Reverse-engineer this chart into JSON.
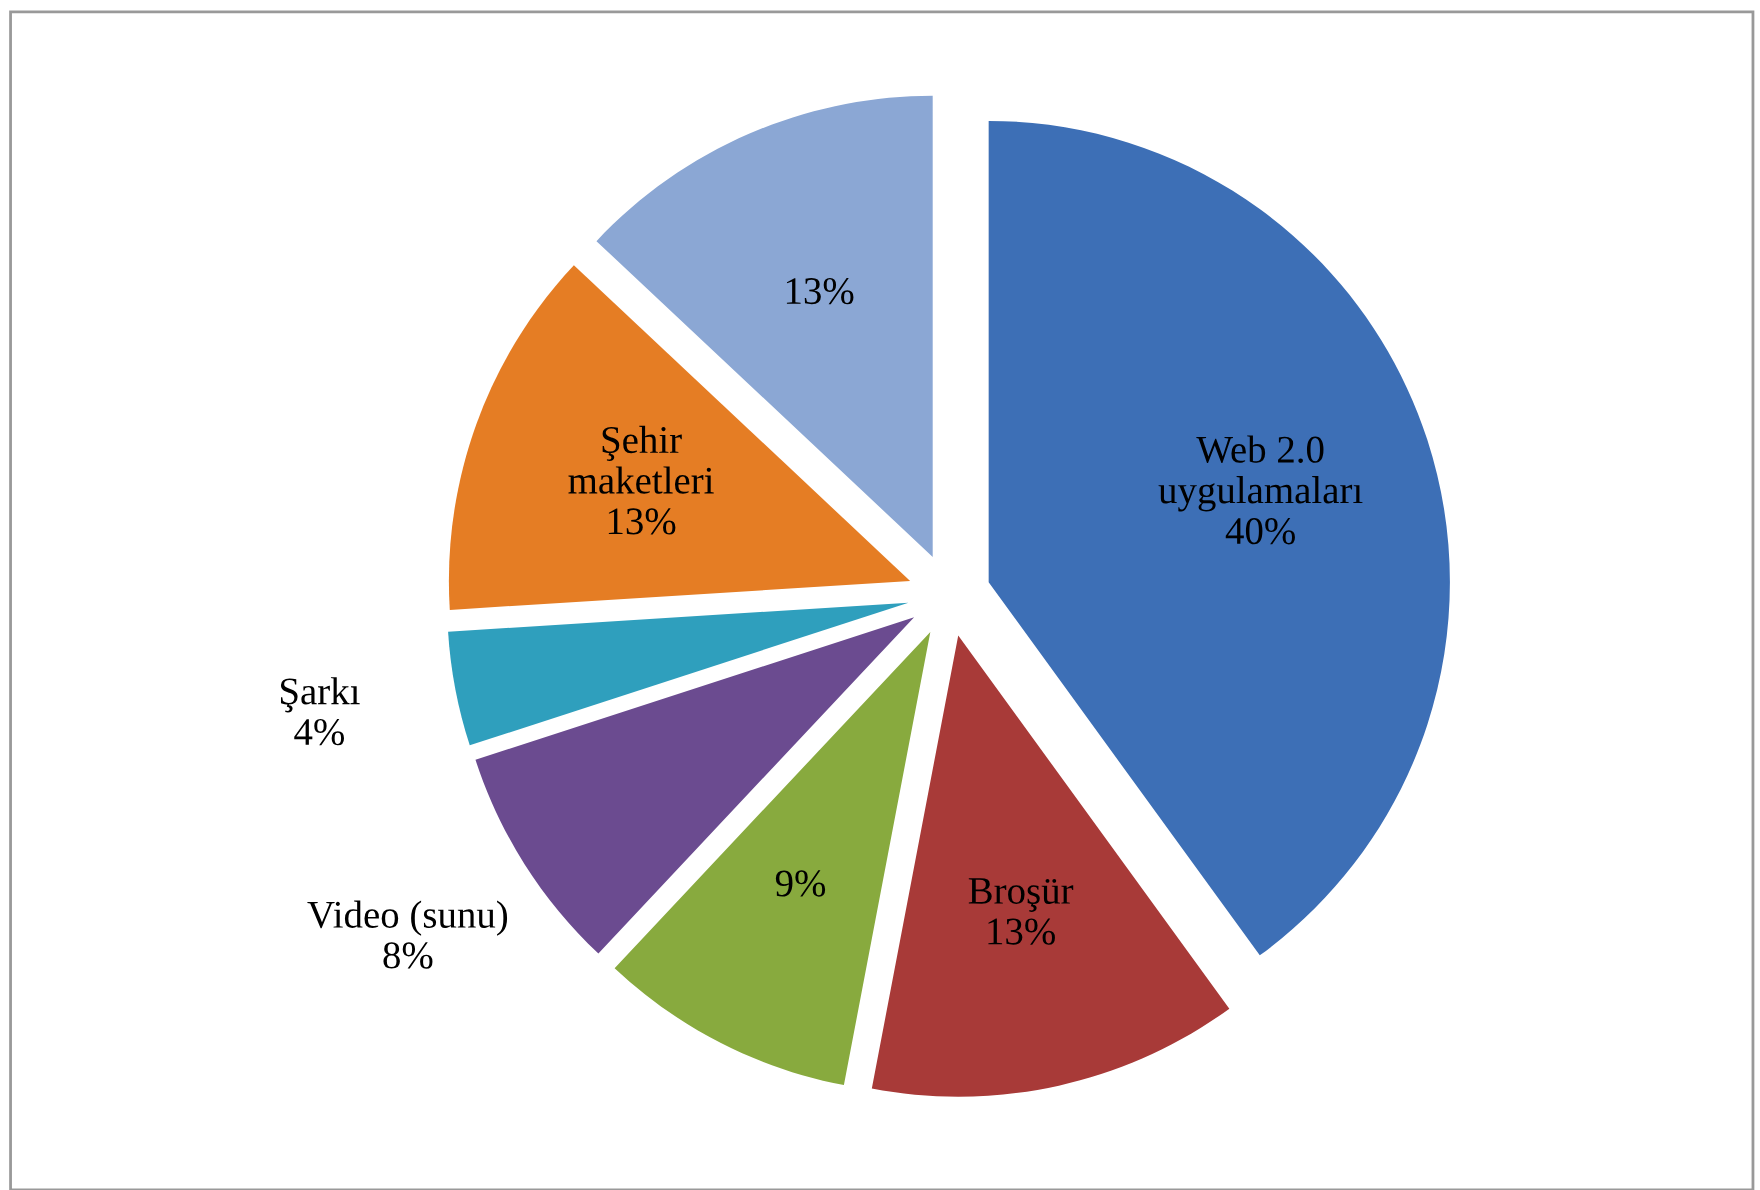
{
  "chart_data": {
    "type": "pie",
    "categories": [
      "Web 2.0\nuygulamaları",
      "Broşür",
      null,
      "Video (sunu)",
      "Şarkı",
      "Şehir\nmaketleri",
      null
    ],
    "values": [
      40,
      13,
      9,
      8,
      4,
      13,
      13
    ],
    "value_labels": [
      "40%",
      "13%",
      "9%",
      "8%",
      "4%",
      "13%",
      "13%"
    ],
    "colors": [
      "#3d6fb6",
      "#a83a38",
      "#88aa3e",
      "#6b4b90",
      "#2f9fbd",
      "#e57d24",
      "#8ba7d4"
    ],
    "legend": false
  }
}
